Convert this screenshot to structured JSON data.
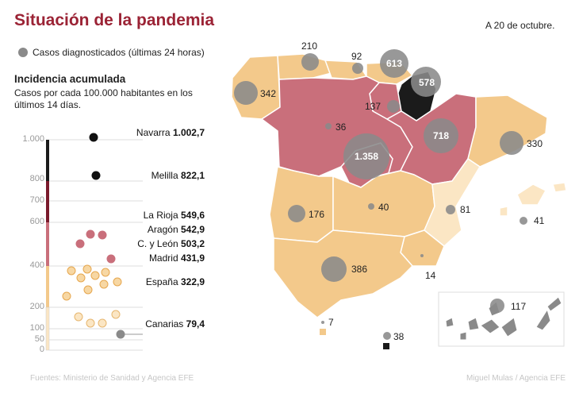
{
  "title": "Situación de la pandemia",
  "date": "A 20 de octubre.",
  "legend": {
    "label": "Casos diagnosticados (últimas 24 horas)",
    "dot_color": "#8a8a8a"
  },
  "incidence": {
    "title": "Incidencia acumulada",
    "subtitle": "Casos por cada 100.000 habitantes en los últimos 14 días."
  },
  "axis_ticks": [
    "1.000",
    "800",
    "700",
    "600",
    "400",
    "200",
    "100",
    "50",
    "0"
  ],
  "ranked": [
    {
      "name": "Navarra",
      "value": "1.002,7"
    },
    {
      "name": "Melilla",
      "value": "822,1"
    },
    {
      "name": "La Rioja",
      "value": "549,6"
    },
    {
      "name": "Aragón",
      "value": "542,9"
    },
    {
      "name": "C. y León",
      "value": "503,2"
    },
    {
      "name": "Madrid",
      "value": "431,9"
    },
    {
      "name": "España",
      "value": "322,9"
    },
    {
      "name": "Canarias",
      "value": "79,4"
    }
  ],
  "scale_colors": {
    "top": "#1b1b1b",
    "high": "#7a1a2c",
    "mid": "#c96f7b",
    "low": "#f3c98b",
    "lowest": "#fbe6c4"
  },
  "cases": [
    {
      "region": "Galicia",
      "value": "342"
    },
    {
      "region": "Asturias",
      "value": "210"
    },
    {
      "region": "Cantabria",
      "value": "92"
    },
    {
      "region": "País Vasco",
      "value": "613"
    },
    {
      "region": "Navarra",
      "value": "578"
    },
    {
      "region": "La Rioja",
      "value": "137"
    },
    {
      "region": "Castilla y León",
      "value": "36"
    },
    {
      "region": "Aragón",
      "value": "718"
    },
    {
      "region": "Cataluña",
      "value": "330"
    },
    {
      "region": "Madrid",
      "value": "1.358"
    },
    {
      "region": "Castilla-La Mancha",
      "value": "40"
    },
    {
      "region": "Extremadura",
      "value": "176"
    },
    {
      "region": "C. Valenciana",
      "value": "81"
    },
    {
      "region": "Baleares",
      "value": "41"
    },
    {
      "region": "Andalucía",
      "value": "386"
    },
    {
      "region": "Murcia",
      "value": "14"
    },
    {
      "region": "Ceuta",
      "value": "7"
    },
    {
      "region": "Melilla",
      "value": "38"
    },
    {
      "region": "Canarias",
      "value": "117"
    }
  ],
  "sources": "Fuentes: Ministerio de Sanidad y Agencia EFE",
  "credit": "Miguel Mulas / Agencia EFE"
}
